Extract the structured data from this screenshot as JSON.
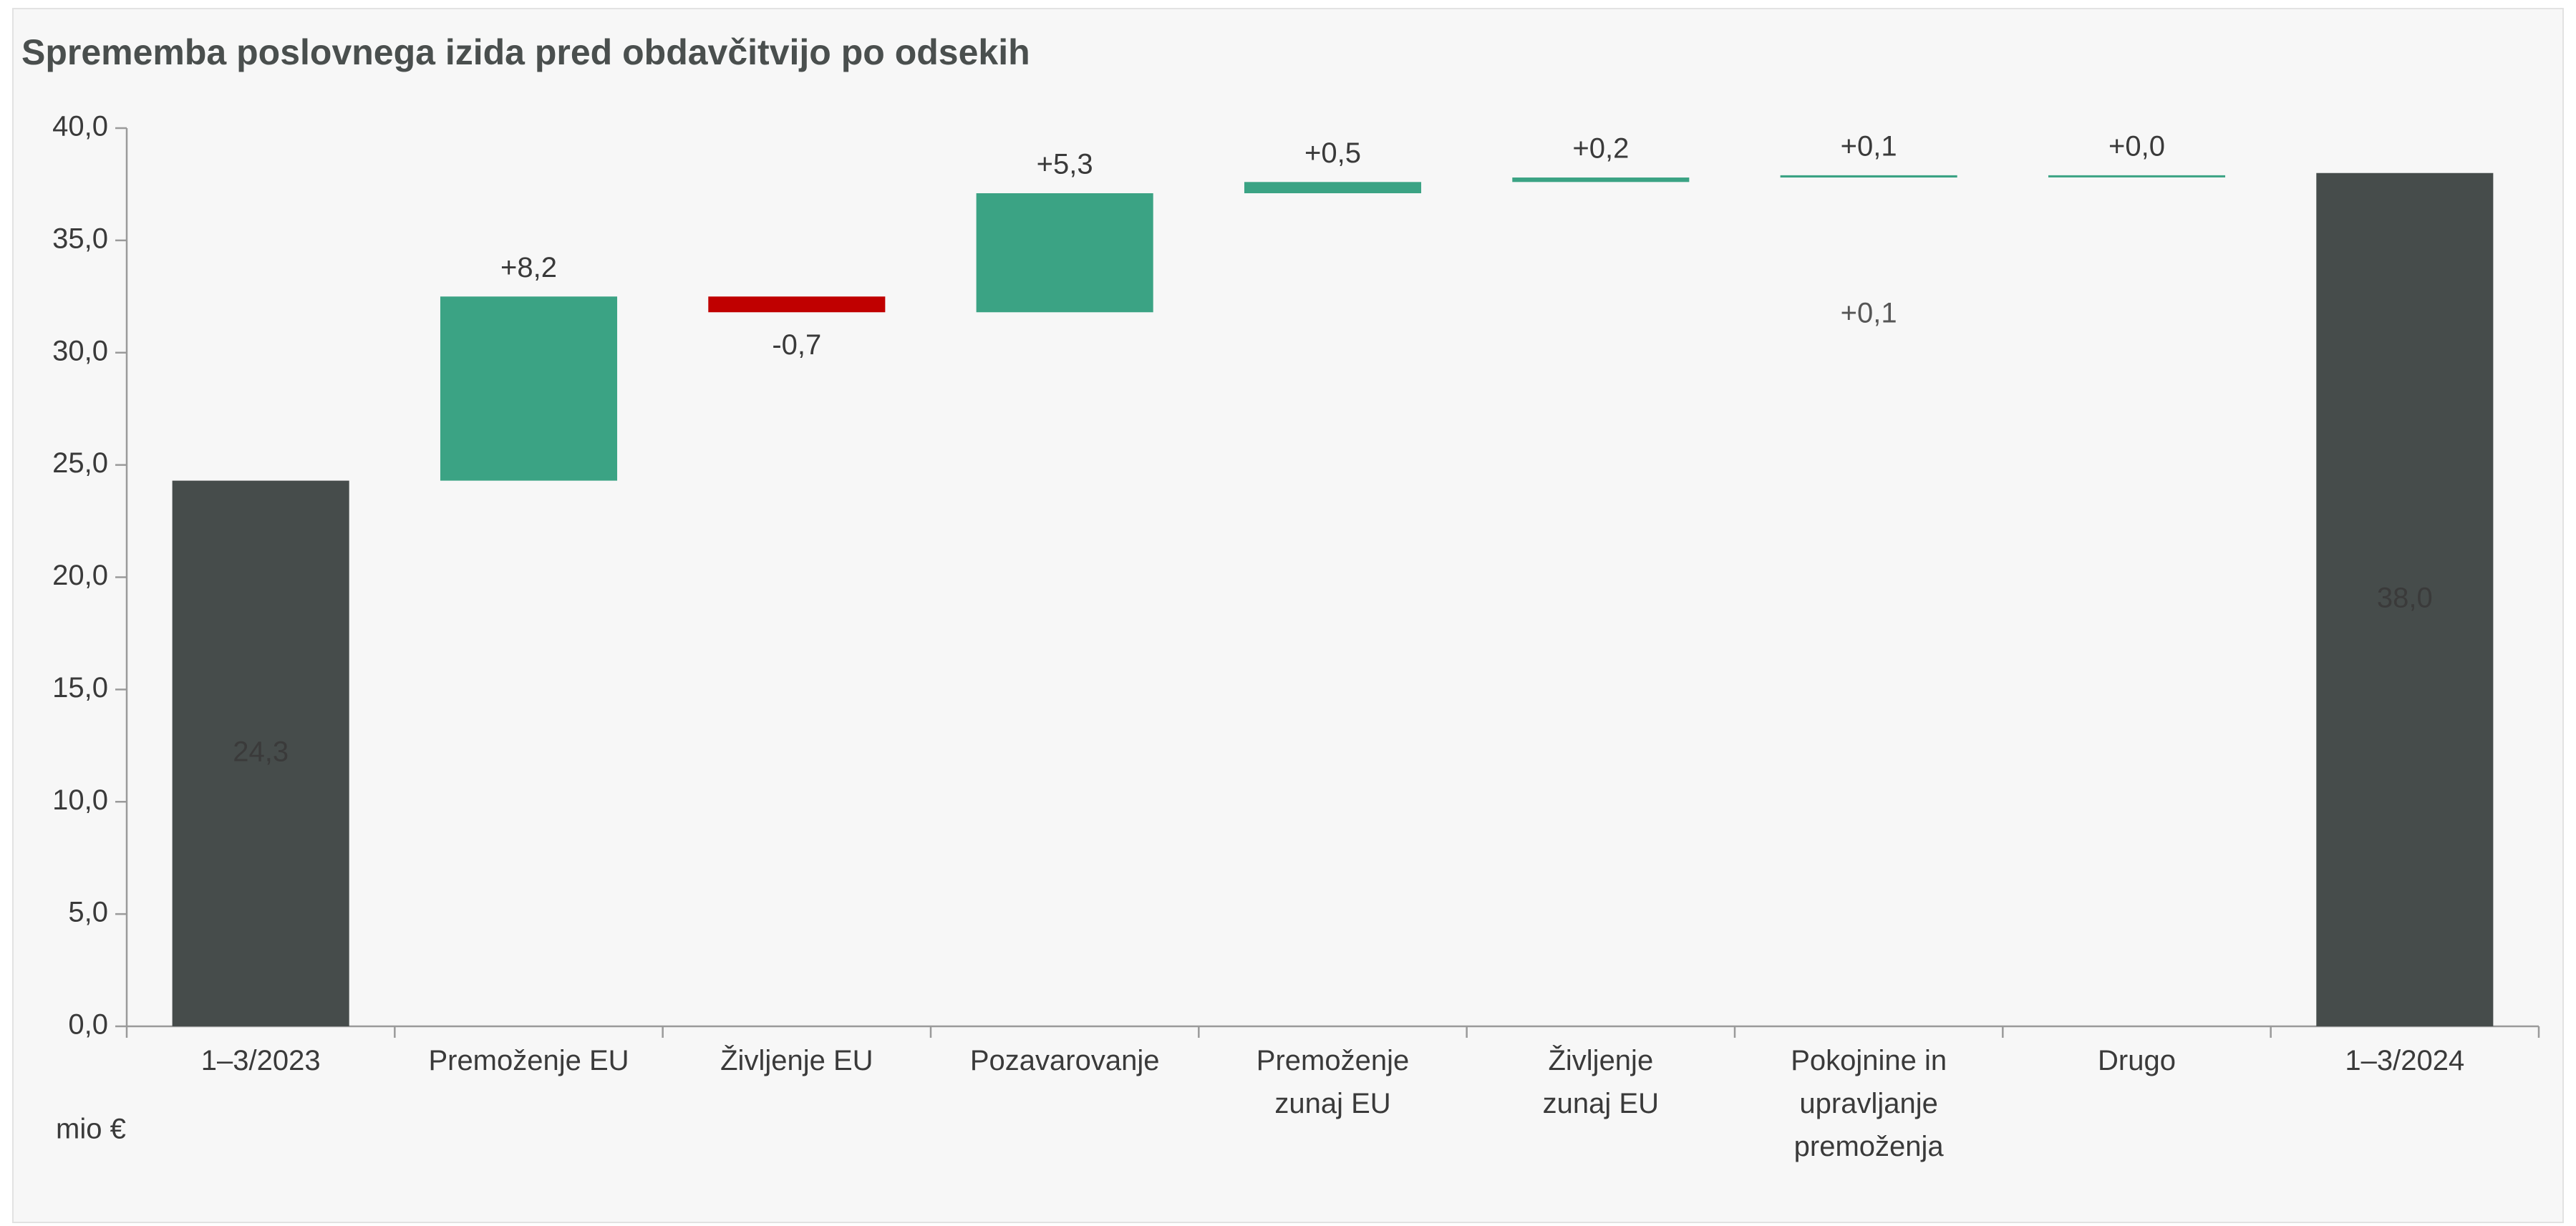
{
  "chart_data": {
    "type": "waterfall",
    "title": "Sprememba poslovnega izida pred obdavčitvijo po odsekih",
    "y_label": "mio €",
    "categories": [
      "1–3/2023",
      "Premoženje EU",
      "Življenje EU",
      "Pozavarovanje",
      "Premoženje\nzunaj EU",
      "Življenje\nzunaj EU",
      "Pokojnine in\nupravljanje\npremoženja",
      "Drugo",
      "1–3/2024"
    ],
    "values": [
      24.3,
      8.2,
      -0.7,
      5.3,
      0.5,
      0.2,
      0.1,
      0.0,
      38.0
    ],
    "value_labels": [
      "24,3",
      "+8,2",
      "-0,7",
      "+5,3",
      "+0,5",
      "+0,2",
      "+0,1",
      "+0,0",
      "38,0"
    ],
    "measure": [
      "total",
      "relative",
      "relative",
      "relative",
      "relative",
      "relative",
      "relative",
      "relative",
      "total"
    ],
    "colors": {
      "total": "#464c4b",
      "increase": "#3ba384",
      "decrease": "#c00000"
    },
    "annotations": [
      "+0,1"
    ],
    "ylim": [
      0,
      40
    ],
    "yticks": [
      {
        "value": 0,
        "label": "0,0"
      },
      {
        "value": 5,
        "label": "5,0"
      },
      {
        "value": 10,
        "label": "10,0"
      },
      {
        "value": 15,
        "label": "15,0"
      },
      {
        "value": 20,
        "label": "20,0"
      },
      {
        "value": 25,
        "label": "25,0"
      },
      {
        "value": 30,
        "label": "30,0"
      },
      {
        "value": 35,
        "label": "35,0"
      },
      {
        "value": 40,
        "label": "40,0"
      }
    ],
    "grid": false
  }
}
